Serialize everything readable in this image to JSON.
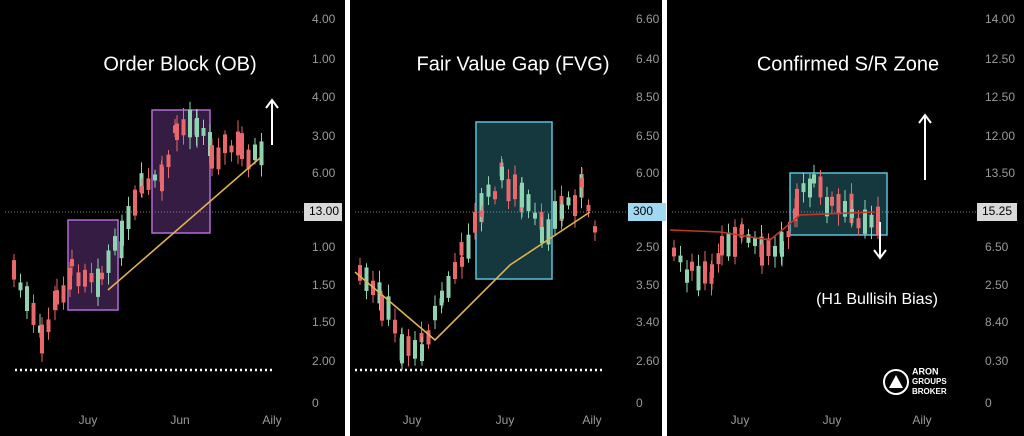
{
  "panels": [
    {
      "title": "Order Block (OB)",
      "y_labels": [
        "4.00",
        "1.00",
        "4.00",
        "3.00",
        "6.00",
        "1.00",
        "1.50",
        "1.50",
        "2.00",
        "0"
      ],
      "price_tag": "13.00",
      "x_labels": [
        "Juy",
        "Jun",
        "Aily"
      ]
    },
    {
      "title": "Fair Value Gap (FVG)",
      "y_labels": [
        "6.60",
        "6.40",
        "8.50",
        "6.50",
        "6.00",
        "2.50",
        "3.50",
        "3.40",
        "2.60",
        "0"
      ],
      "price_tag": "300",
      "x_labels": [
        "Juy",
        "Juy",
        "Aily"
      ]
    },
    {
      "title": "Confirmed S/R Zone",
      "y_labels": [
        "14.00",
        "12.50",
        "12.50",
        "12.00",
        "13.50",
        "6.50",
        "2.50",
        "8.40",
        "0.30",
        "0"
      ],
      "price_tag": "15.25",
      "x_labels": [
        "Juy",
        "Juy",
        "Aily"
      ]
    }
  ],
  "annotation": "(H1 Bullisih Bias)",
  "logo": {
    "lines": [
      "ARON",
      "GROUPS",
      "BROKER"
    ]
  }
}
